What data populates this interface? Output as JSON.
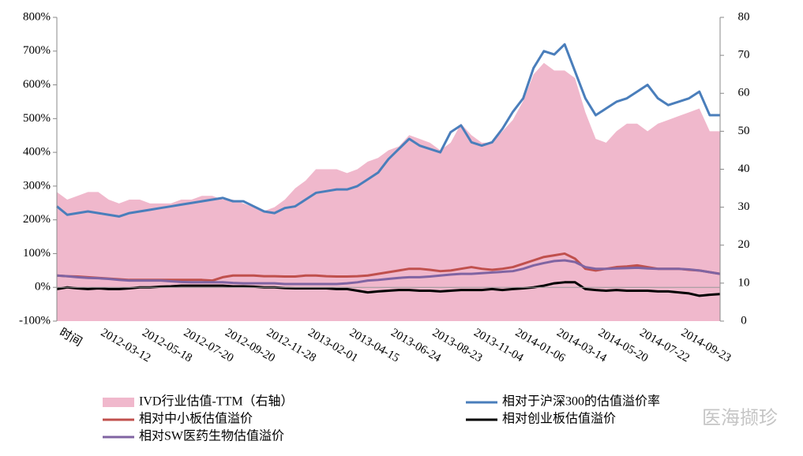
{
  "chart_data": {
    "type": "line",
    "categories": [
      "时间",
      null,
      null,
      null,
      "2012-03-12",
      null,
      null,
      null,
      "2012-05-18",
      null,
      null,
      null,
      "2012-07-20",
      null,
      null,
      null,
      "2012-09-20",
      null,
      null,
      null,
      "2012-11-28",
      null,
      null,
      null,
      "2013-02-01",
      null,
      null,
      null,
      "2013-04-15",
      null,
      null,
      null,
      "2013-06-24",
      null,
      null,
      null,
      "2013-08-23",
      null,
      null,
      null,
      "2013-11-04",
      null,
      null,
      null,
      "2014-01-06",
      null,
      null,
      null,
      "2014-03-14",
      null,
      null,
      null,
      "2014-05-20",
      null,
      null,
      null,
      "2014-07-22",
      null,
      null,
      null,
      "2014-09-23",
      null,
      null,
      null,
      null
    ],
    "ylim": [
      -100,
      800
    ],
    "yticks": [
      {
        "value": -100,
        "label": "-100%"
      },
      {
        "value": 0,
        "label": "0%"
      },
      {
        "value": 100,
        "label": "100%"
      },
      {
        "value": 200,
        "label": "200%"
      },
      {
        "value": 300,
        "label": "300%"
      },
      {
        "value": 400,
        "label": "400%"
      },
      {
        "value": 500,
        "label": "500%"
      },
      {
        "value": 600,
        "label": "600%"
      },
      {
        "value": 700,
        "label": "700%"
      },
      {
        "value": 800,
        "label": "800%"
      }
    ],
    "y2lim": [
      0,
      80
    ],
    "y2ticks": [
      0,
      10,
      20,
      30,
      40,
      50,
      60,
      70,
      80
    ],
    "series": [
      {
        "name": "IVD行业估值-TTM（右轴）",
        "color": "#f0b8cc",
        "kind": "area",
        "axis": "y2",
        "values": [
          34,
          32,
          33,
          34,
          34,
          32,
          31,
          32,
          32,
          31,
          31,
          31,
          32,
          32,
          33,
          33,
          32,
          32,
          31,
          30,
          29,
          30,
          32,
          35,
          37,
          40,
          40,
          40,
          39,
          40,
          42,
          43,
          45,
          46,
          49,
          48,
          47,
          45,
          47,
          52,
          49,
          47,
          47,
          50,
          53,
          58,
          65,
          68,
          66,
          66,
          64,
          55,
          48,
          47,
          50,
          52,
          52,
          50,
          52,
          53,
          54,
          55,
          56,
          50,
          50
        ]
      },
      {
        "name": "相对于沪深300的估值溢价率",
        "color": "#4a7ebb",
        "values": [
          240,
          215,
          220,
          225,
          220,
          215,
          210,
          220,
          225,
          230,
          235,
          240,
          245,
          250,
          255,
          260,
          265,
          255,
          255,
          240,
          225,
          220,
          235,
          240,
          260,
          280,
          285,
          290,
          290,
          300,
          320,
          340,
          380,
          410,
          440,
          420,
          410,
          400,
          460,
          480,
          430,
          420,
          430,
          470,
          520,
          560,
          650,
          700,
          690,
          720,
          640,
          560,
          510,
          530,
          550,
          560,
          580,
          600,
          560,
          540,
          550,
          560,
          580,
          510,
          510
        ]
      },
      {
        "name": "相对中小板估值溢价",
        "color": "#c0504d",
        "values": [
          35,
          33,
          32,
          30,
          28,
          26,
          24,
          22,
          22,
          22,
          22,
          22,
          22,
          22,
          22,
          20,
          30,
          35,
          35,
          35,
          33,
          33,
          32,
          32,
          35,
          35,
          33,
          32,
          32,
          33,
          35,
          40,
          45,
          50,
          55,
          55,
          52,
          48,
          50,
          55,
          60,
          55,
          52,
          55,
          60,
          70,
          80,
          90,
          95,
          100,
          85,
          55,
          50,
          55,
          60,
          62,
          65,
          60,
          55,
          55,
          55,
          52,
          50,
          45,
          40
        ]
      },
      {
        "name": "相对创业板估值溢价",
        "color": "#000000",
        "values": [
          -5,
          0,
          -3,
          -5,
          -3,
          -5,
          -5,
          -3,
          0,
          0,
          2,
          3,
          5,
          5,
          5,
          5,
          5,
          3,
          3,
          2,
          0,
          0,
          -2,
          -3,
          -3,
          -3,
          -3,
          -5,
          -5,
          -10,
          -15,
          -12,
          -10,
          -8,
          -8,
          -10,
          -10,
          -12,
          -10,
          -8,
          -8,
          -8,
          -5,
          -8,
          -5,
          -3,
          0,
          5,
          12,
          15,
          15,
          -5,
          -8,
          -10,
          -8,
          -10,
          -10,
          -10,
          -12,
          -12,
          -15,
          -18,
          -25,
          -22,
          -20
        ]
      },
      {
        "name": "相对SW医药生物估值溢价",
        "color": "#8064a2",
        "values": [
          35,
          33,
          30,
          28,
          27,
          25,
          22,
          20,
          20,
          20,
          20,
          18,
          16,
          15,
          15,
          15,
          15,
          13,
          12,
          12,
          12,
          12,
          10,
          10,
          10,
          10,
          10,
          10,
          12,
          15,
          20,
          22,
          25,
          28,
          30,
          30,
          32,
          35,
          38,
          40,
          40,
          42,
          44,
          46,
          48,
          55,
          65,
          72,
          78,
          80,
          75,
          60,
          55,
          55,
          56,
          57,
          58,
          56,
          55,
          55,
          55,
          53,
          50,
          45,
          40
        ]
      }
    ],
    "watermark": "医海撷珍"
  }
}
